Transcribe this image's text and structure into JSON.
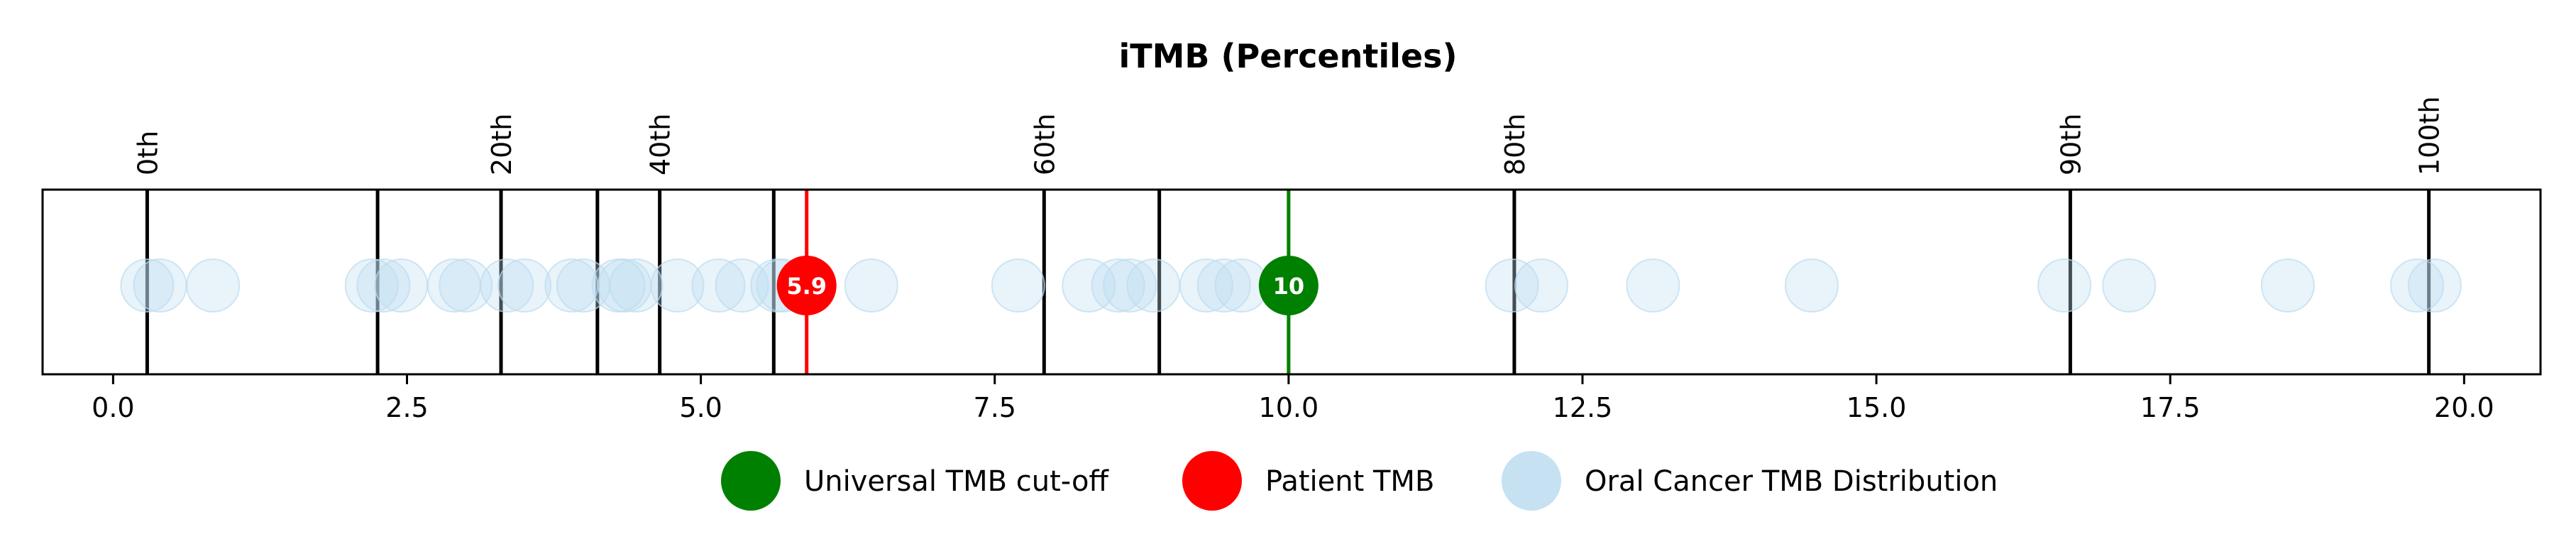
{
  "chart_data": {
    "type": "scatter",
    "title": "iTMB (Percentiles)",
    "xlabel": "",
    "ylabel": "",
    "xlim": [
      -0.6,
      20.65
    ],
    "x_ticks": [
      0.0,
      2.5,
      5.0,
      7.5,
      10.0,
      12.5,
      15.0,
      17.5,
      20.0
    ],
    "x_tick_labels": [
      "0.0",
      "2.5",
      "5.0",
      "7.5",
      "10.0",
      "12.5",
      "15.0",
      "17.5",
      "20.0"
    ],
    "grid": false,
    "legend_position": "bottom-center",
    "percentile_lines": [
      {
        "x": 0.29,
        "label": "0th"
      },
      {
        "x": 2.25,
        "label": ""
      },
      {
        "x": 3.3,
        "label": "20th"
      },
      {
        "x": 4.12,
        "label": ""
      },
      {
        "x": 4.65,
        "label": "40th"
      },
      {
        "x": 5.62,
        "label": ""
      },
      {
        "x": 7.92,
        "label": "60th"
      },
      {
        "x": 8.9,
        "label": ""
      },
      {
        "x": 11.92,
        "label": "80th"
      },
      {
        "x": 16.65,
        "label": "90th"
      },
      {
        "x": 19.7,
        "label": "100th"
      }
    ],
    "distribution": {
      "name": "Oral Cancer TMB Distribution",
      "color": "#bcdcf0",
      "x": [
        0.29,
        0.4,
        0.85,
        2.2,
        2.3,
        2.45,
        2.9,
        3.0,
        3.35,
        3.5,
        3.9,
        4.0,
        4.3,
        4.35,
        4.45,
        4.8,
        5.15,
        5.35,
        5.65,
        5.7,
        6.45,
        7.7,
        8.3,
        8.55,
        8.65,
        8.85,
        9.3,
        9.45,
        9.6,
        11.9,
        12.15,
        13.1,
        14.45,
        16.6,
        17.15,
        18.5,
        19.6,
        19.75
      ]
    },
    "patient": {
      "name": "Patient TMB",
      "x": 5.9,
      "label": "5.9",
      "color": "#ff0000"
    },
    "cutoff": {
      "name": "Universal TMB cut-off",
      "x": 10.0,
      "label": "10",
      "color": "#008000"
    },
    "legend": [
      {
        "name": "Universal TMB cut-off",
        "color": "#008000"
      },
      {
        "name": "Patient TMB",
        "color": "#ff0000"
      },
      {
        "name": "Oral Cancer TMB Distribution",
        "color": "#bcdcf0"
      }
    ]
  }
}
